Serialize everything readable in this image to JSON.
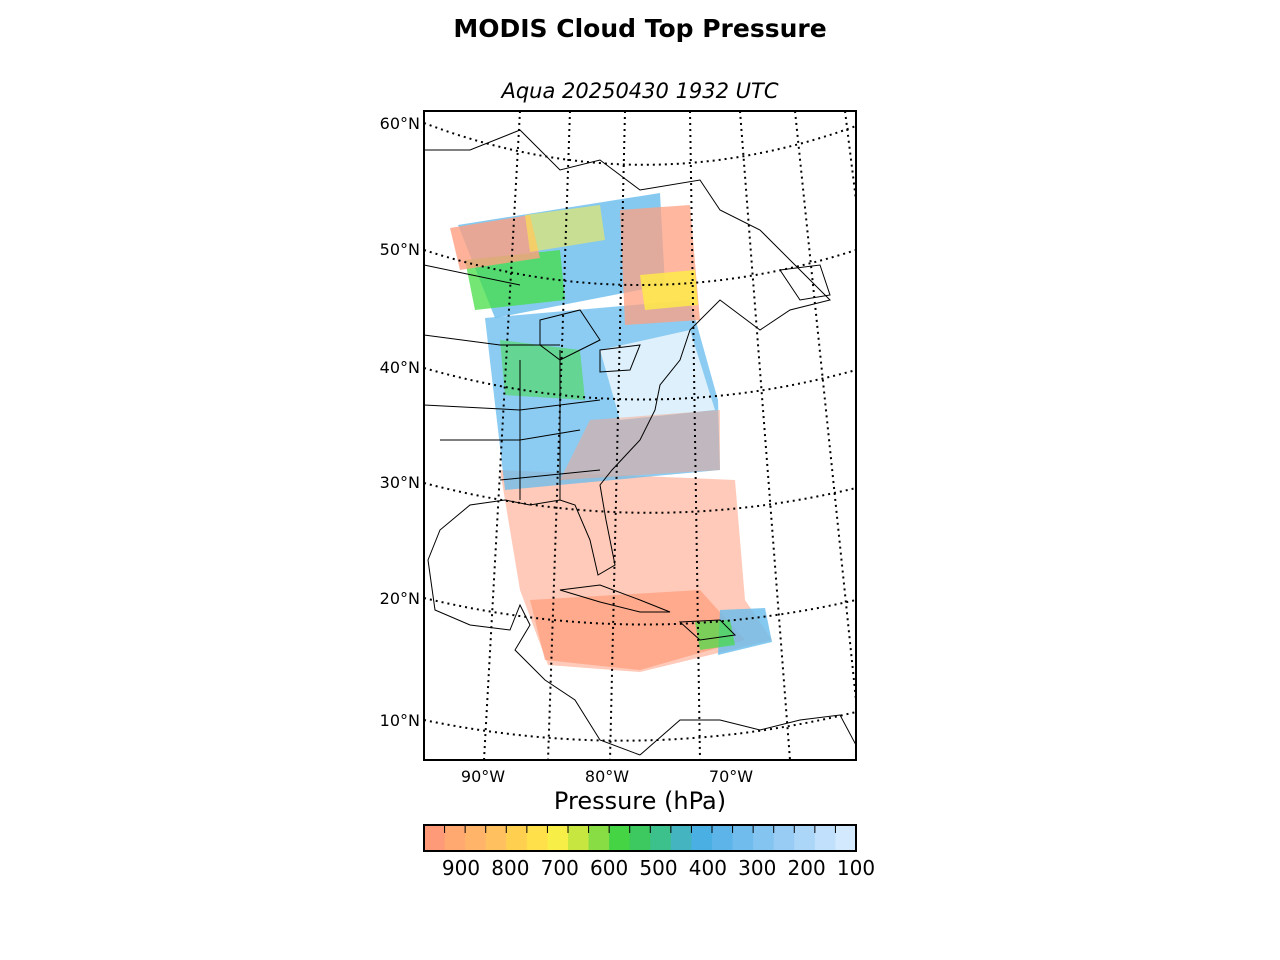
{
  "title": "MODIS Cloud Top Pressure",
  "subtitle": "Aqua 20250430 1932 UTC",
  "map": {
    "projection": "conic",
    "parallels_deg": [
      10,
      20,
      30,
      40,
      50,
      60
    ],
    "meridians_deg": [
      -90,
      -80,
      -70
    ],
    "lat_labels": [
      "60°N",
      "50°N",
      "40°N",
      "30°N",
      "20°N",
      "10°N"
    ],
    "lon_labels": [
      "90°W",
      "80°W",
      "70°W"
    ],
    "gridline_style": "dotted",
    "colors": {
      "low_cloud": "#ff9f7f",
      "mid_low": "#ffcc55",
      "mid": "#ffee44",
      "mid_high": "#44dd44",
      "high": "#66bbee",
      "very_high": "#c8e2ff",
      "coastline": "#000000"
    }
  },
  "colorbar": {
    "label": "Pressure (hPa)",
    "ticks": [
      "900",
      "800",
      "700",
      "600",
      "500",
      "400",
      "300",
      "200",
      "100"
    ],
    "range_hpa": [
      975,
      100
    ],
    "colors": [
      "#ff9a78",
      "#ffa870",
      "#ffb46a",
      "#ffc060",
      "#ffd050",
      "#ffe04a",
      "#f8ee48",
      "#c8e640",
      "#88dd44",
      "#44d444",
      "#3ec860",
      "#3cc08c",
      "#44b4c0",
      "#4ab0e4",
      "#5cb4e8",
      "#70bcec",
      "#84c4f0",
      "#98ccf4",
      "#acd6f8",
      "#c0e0fb",
      "#d2e9fe"
    ]
  }
}
